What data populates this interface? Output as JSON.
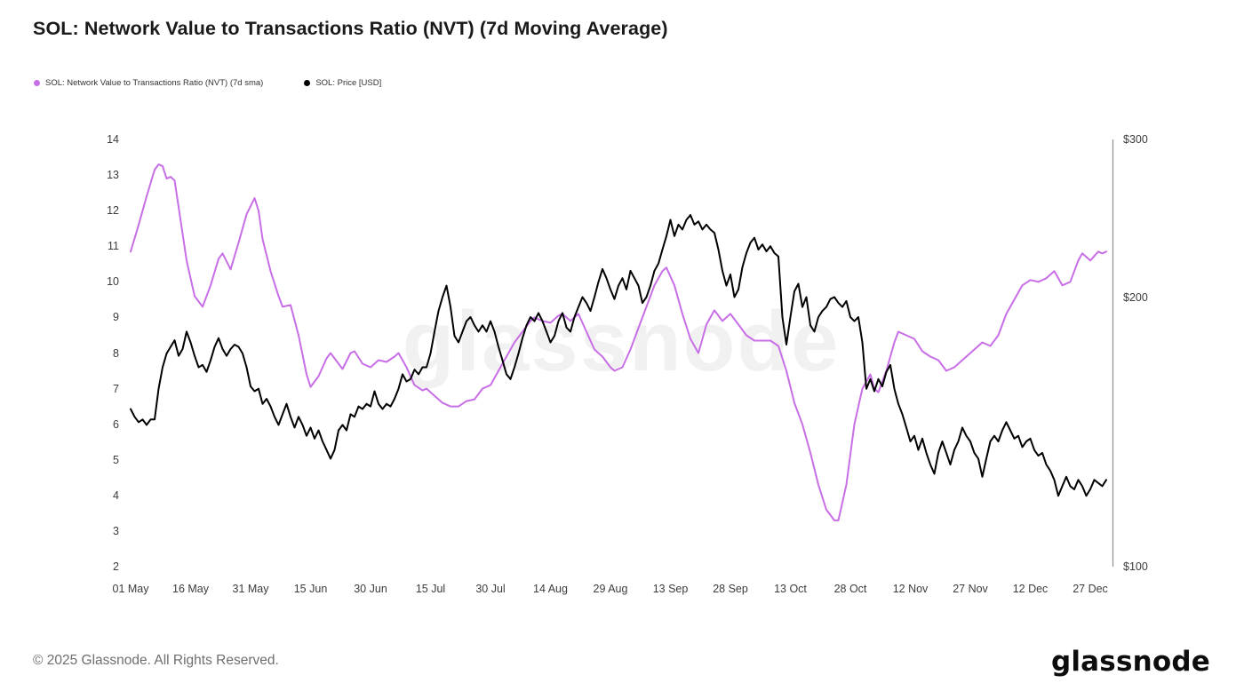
{
  "title": "SOL: Network Value to Transactions Ratio (NVT) (7d Moving Average)",
  "watermark": "glassnode",
  "footer": {
    "copyright": "© 2025 Glassnode. All Rights Reserved.",
    "logo": "glassnode"
  },
  "chart_data": {
    "type": "line",
    "title": "SOL: Network Value to Transactions Ratio (NVT) (7d Moving Average)",
    "legend_position": "top-left",
    "grid": false,
    "x_axis": {
      "kind": "date",
      "min_day": 0,
      "max_day": 244,
      "ticks": [
        {
          "day": 0,
          "label": "01 May"
        },
        {
          "day": 15,
          "label": "16 May"
        },
        {
          "day": 30,
          "label": "31 May"
        },
        {
          "day": 45,
          "label": "15 Jun"
        },
        {
          "day": 60,
          "label": "30 Jun"
        },
        {
          "day": 75,
          "label": "15 Jul"
        },
        {
          "day": 90,
          "label": "30 Jul"
        },
        {
          "day": 105,
          "label": "14 Aug"
        },
        {
          "day": 120,
          "label": "29 Aug"
        },
        {
          "day": 135,
          "label": "13 Sep"
        },
        {
          "day": 150,
          "label": "28 Sep"
        },
        {
          "day": 165,
          "label": "13 Oct"
        },
        {
          "day": 180,
          "label": "28 Oct"
        },
        {
          "day": 195,
          "label": "12 Nov"
        },
        {
          "day": 210,
          "label": "27 Nov"
        },
        {
          "day": 225,
          "label": "12 Dec"
        },
        {
          "day": 240,
          "label": "27 Dec"
        }
      ]
    },
    "left_axis": {
      "scale": "linear",
      "min": 2,
      "max": 14,
      "ticks": [
        14,
        13,
        12,
        11,
        10,
        9,
        8,
        7,
        6,
        5,
        4,
        3,
        2
      ]
    },
    "right_axis": {
      "scale": "log",
      "min": 100,
      "max": 300,
      "ticks": [
        {
          "value": 300,
          "label": "$300"
        },
        {
          "value": 200,
          "label": "$200"
        },
        {
          "value": 100,
          "label": "$100"
        }
      ]
    },
    "series": [
      {
        "name": "SOL: Network Value to Transactions Ratio (NVT) (7d sma)",
        "color": "#c86ee6",
        "axis": "left",
        "points": [
          [
            0,
            10.85
          ],
          [
            2,
            11.6
          ],
          [
            4,
            12.4
          ],
          [
            6,
            13.15
          ],
          [
            7,
            13.3
          ],
          [
            8,
            13.25
          ],
          [
            9,
            12.9
          ],
          [
            10,
            12.95
          ],
          [
            11,
            12.85
          ],
          [
            12,
            12.1
          ],
          [
            14,
            10.6
          ],
          [
            16,
            9.6
          ],
          [
            18,
            9.3
          ],
          [
            20,
            9.9
          ],
          [
            22,
            10.65
          ],
          [
            23,
            10.8
          ],
          [
            25,
            10.35
          ],
          [
            27,
            11.1
          ],
          [
            29,
            11.9
          ],
          [
            31,
            12.35
          ],
          [
            32,
            12.0
          ],
          [
            33,
            11.2
          ],
          [
            35,
            10.3
          ],
          [
            37,
            9.6
          ],
          [
            38,
            9.3
          ],
          [
            40,
            9.35
          ],
          [
            42,
            8.5
          ],
          [
            44,
            7.4
          ],
          [
            45,
            7.05
          ],
          [
            47,
            7.35
          ],
          [
            49,
            7.85
          ],
          [
            50,
            8.0
          ],
          [
            52,
            7.7
          ],
          [
            53,
            7.55
          ],
          [
            55,
            8.0
          ],
          [
            56,
            8.05
          ],
          [
            58,
            7.7
          ],
          [
            60,
            7.6
          ],
          [
            62,
            7.8
          ],
          [
            64,
            7.75
          ],
          [
            66,
            7.9
          ],
          [
            67,
            8.0
          ],
          [
            69,
            7.6
          ],
          [
            71,
            7.1
          ],
          [
            73,
            6.95
          ],
          [
            74,
            7.0
          ],
          [
            76,
            6.8
          ],
          [
            78,
            6.6
          ],
          [
            80,
            6.5
          ],
          [
            82,
            6.5
          ],
          [
            84,
            6.65
          ],
          [
            86,
            6.7
          ],
          [
            88,
            7.0
          ],
          [
            90,
            7.1
          ],
          [
            92,
            7.5
          ],
          [
            94,
            7.9
          ],
          [
            96,
            8.3
          ],
          [
            98,
            8.6
          ],
          [
            100,
            8.9
          ],
          [
            101,
            9.0
          ],
          [
            103,
            8.9
          ],
          [
            105,
            8.85
          ],
          [
            107,
            9.05
          ],
          [
            108,
            9.1
          ],
          [
            110,
            8.9
          ],
          [
            112,
            9.1
          ],
          [
            114,
            8.6
          ],
          [
            116,
            8.1
          ],
          [
            118,
            7.9
          ],
          [
            120,
            7.6
          ],
          [
            121,
            7.5
          ],
          [
            123,
            7.6
          ],
          [
            125,
            8.1
          ],
          [
            127,
            8.7
          ],
          [
            129,
            9.3
          ],
          [
            131,
            9.9
          ],
          [
            133,
            10.3
          ],
          [
            134,
            10.4
          ],
          [
            136,
            9.9
          ],
          [
            138,
            9.1
          ],
          [
            140,
            8.4
          ],
          [
            142,
            8.0
          ],
          [
            144,
            8.8
          ],
          [
            146,
            9.2
          ],
          [
            148,
            8.9
          ],
          [
            150,
            9.1
          ],
          [
            152,
            8.8
          ],
          [
            154,
            8.5
          ],
          [
            156,
            8.35
          ],
          [
            158,
            8.35
          ],
          [
            160,
            8.35
          ],
          [
            162,
            8.2
          ],
          [
            164,
            7.5
          ],
          [
            166,
            6.6
          ],
          [
            168,
            6.0
          ],
          [
            170,
            5.2
          ],
          [
            172,
            4.3
          ],
          [
            174,
            3.6
          ],
          [
            176,
            3.3
          ],
          [
            177,
            3.3
          ],
          [
            179,
            4.3
          ],
          [
            181,
            6.0
          ],
          [
            183,
            7.0
          ],
          [
            185,
            7.4
          ],
          [
            186,
            7.0
          ],
          [
            187,
            6.9
          ],
          [
            189,
            7.5
          ],
          [
            191,
            8.3
          ],
          [
            192,
            8.6
          ],
          [
            194,
            8.5
          ],
          [
            196,
            8.4
          ],
          [
            198,
            8.05
          ],
          [
            200,
            7.9
          ],
          [
            202,
            7.8
          ],
          [
            204,
            7.5
          ],
          [
            206,
            7.6
          ],
          [
            208,
            7.8
          ],
          [
            210,
            8.0
          ],
          [
            212,
            8.2
          ],
          [
            213,
            8.3
          ],
          [
            215,
            8.2
          ],
          [
            217,
            8.5
          ],
          [
            219,
            9.1
          ],
          [
            221,
            9.5
          ],
          [
            223,
            9.9
          ],
          [
            225,
            10.05
          ],
          [
            227,
            10.0
          ],
          [
            229,
            10.1
          ],
          [
            231,
            10.3
          ],
          [
            233,
            9.9
          ],
          [
            235,
            10.0
          ],
          [
            237,
            10.6
          ],
          [
            238,
            10.8
          ],
          [
            240,
            10.6
          ],
          [
            242,
            10.85
          ],
          [
            243,
            10.8
          ],
          [
            244,
            10.85
          ]
        ]
      },
      {
        "name": "SOL: Price [USD]",
        "color": "#000000",
        "axis": "right",
        "start_day": 0,
        "values": [
          150,
          147,
          145,
          146,
          144,
          146,
          146,
          158,
          167,
          173,
          176,
          179,
          172,
          175,
          183,
          178,
          172,
          167,
          168,
          165,
          170,
          176,
          180,
          175,
          172,
          175,
          177,
          176,
          173,
          167,
          159,
          157,
          158,
          152,
          154,
          151,
          147,
          144,
          148,
          152,
          147,
          143,
          147,
          144,
          140,
          143,
          139,
          142,
          138,
          135,
          132,
          135,
          142,
          144,
          142,
          148,
          147,
          151,
          150,
          152,
          151,
          157,
          152,
          150,
          152,
          151,
          154,
          158,
          164,
          161,
          162,
          166,
          164,
          167,
          167,
          173,
          183,
          193,
          200,
          206,
          195,
          181,
          178,
          183,
          188,
          190,
          186,
          183,
          186,
          183,
          188,
          183,
          176,
          170,
          164,
          162,
          167,
          173,
          180,
          186,
          190,
          188,
          192,
          188,
          183,
          178,
          181,
          188,
          192,
          185,
          183,
          190,
          195,
          200,
          197,
          193,
          200,
          208,
          215,
          210,
          204,
          199,
          206,
          210,
          204,
          214,
          210,
          206,
          197,
          200,
          206,
          214,
          218,
          226,
          234,
          244,
          234,
          241,
          238,
          244,
          247,
          241,
          243,
          238,
          241,
          238,
          236,
          226,
          214,
          206,
          212,
          200,
          204,
          216,
          224,
          230,
          233,
          226,
          229,
          225,
          228,
          224,
          222,
          190,
          177,
          190,
          203,
          207,
          195,
          200,
          186,
          183,
          190,
          193,
          195,
          199,
          200,
          197,
          195,
          198,
          190,
          188,
          190,
          178,
          158,
          162,
          157,
          162,
          159,
          165,
          168,
          158,
          152,
          148,
          143,
          138,
          140,
          135,
          139,
          134,
          130,
          127,
          134,
          138,
          134,
          130,
          135,
          138,
          143,
          140,
          138,
          134,
          132,
          126,
          132,
          138,
          140,
          138,
          142,
          145,
          142,
          139,
          140,
          136,
          138,
          139,
          135,
          133,
          134,
          130,
          128,
          125,
          120,
          123,
          126,
          123,
          122,
          125,
          123,
          120,
          122,
          125,
          124,
          123,
          125
        ]
      }
    ]
  }
}
